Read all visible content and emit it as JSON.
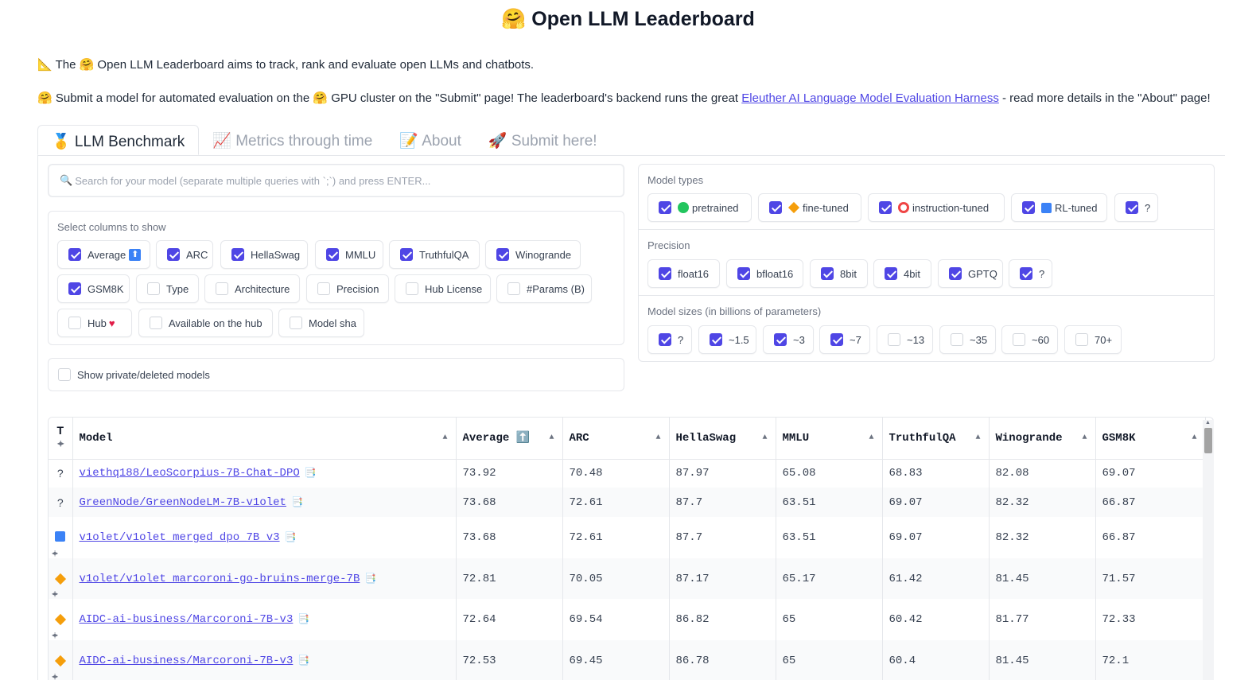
{
  "title": "🤗 Open LLM Leaderboard",
  "intro": {
    "p1": "📐 The 🤗 Open LLM Leaderboard aims to track, rank and evaluate open LLMs and chatbots.",
    "p2_before": "🤗 Submit a model for automated evaluation on the 🤗 GPU cluster on the \"Submit\" page! The leaderboard's backend runs the great ",
    "p2_link": "Eleuther AI Language Model Evaluation Harness",
    "p2_after": " - read more details in the \"About\" page!"
  },
  "tabs": [
    "🥇 LLM Benchmark",
    "📈 Metrics through time",
    "📝 About",
    "🚀 Submit here!"
  ],
  "search": {
    "icon": "🔍",
    "placeholder": "Search for your model (separate multiple queries with `;`) and press ENTER..."
  },
  "columns": {
    "label": "Select columns to show",
    "options": [
      {
        "label": "Average",
        "checked": true
      },
      {
        "label": "ARC",
        "checked": true
      },
      {
        "label": "HellaSwag",
        "checked": true
      },
      {
        "label": "MMLU",
        "checked": true
      },
      {
        "label": "TruthfulQA",
        "checked": true
      },
      {
        "label": "Winogrande",
        "checked": true
      },
      {
        "label": "GSM8K",
        "checked": true
      },
      {
        "label": "Type",
        "checked": false
      },
      {
        "label": "Architecture",
        "checked": false
      },
      {
        "label": "Precision",
        "checked": false
      },
      {
        "label": "Hub License",
        "checked": false
      },
      {
        "label": "#Params (B)",
        "checked": false
      },
      {
        "label": "Hub",
        "checked": false
      },
      {
        "label": "Available on the hub",
        "checked": false
      },
      {
        "label": "Model sha",
        "checked": false
      }
    ]
  },
  "private": {
    "label": "Show private/deleted models",
    "checked": false
  },
  "model_types": {
    "label": "Model types",
    "options": [
      {
        "label": "pretrained",
        "checked": true
      },
      {
        "label": "fine-tuned",
        "checked": true
      },
      {
        "label": "instruction-tuned",
        "checked": true
      },
      {
        "label": "RL-tuned",
        "checked": true
      },
      {
        "label": "?",
        "checked": true
      }
    ]
  },
  "precision": {
    "label": "Precision",
    "options": [
      {
        "label": "float16",
        "checked": true
      },
      {
        "label": "bfloat16",
        "checked": true
      },
      {
        "label": "8bit",
        "checked": true
      },
      {
        "label": "4bit",
        "checked": true
      },
      {
        "label": "GPTQ",
        "checked": true
      },
      {
        "label": "?",
        "checked": true
      }
    ]
  },
  "sizes": {
    "label": "Model sizes (in billions of parameters)",
    "options": [
      {
        "label": "?",
        "checked": true
      },
      {
        "label": "~1.5",
        "checked": true
      },
      {
        "label": "~3",
        "checked": true
      },
      {
        "label": "~7",
        "checked": true
      },
      {
        "label": "~13",
        "checked": false
      },
      {
        "label": "~35",
        "checked": false
      },
      {
        "label": "~60",
        "checked": false
      },
      {
        "label": "70+",
        "checked": false
      }
    ]
  },
  "table": {
    "headers": [
      "T",
      "Model",
      "Average ⬆️",
      "ARC",
      "HellaSwag",
      "MMLU",
      "TruthfulQA",
      "Winogrande",
      "GSM8K"
    ],
    "rows": [
      {
        "type": "?",
        "model": "viethq188/LeoScorpius-7B-Chat-DPO",
        "values": [
          "73.92",
          "70.48",
          "87.97",
          "65.08",
          "68.83",
          "82.08",
          "69.07"
        ]
      },
      {
        "type": "?",
        "model": "GreenNode/GreenNodeLM-7B-v1olet",
        "values": [
          "73.68",
          "72.61",
          "87.7",
          "63.51",
          "69.07",
          "82.32",
          "66.87"
        ]
      },
      {
        "type": "RL-tuned",
        "model": "v1olet/v1olet_merged_dpo_7B_v3",
        "values": [
          "73.68",
          "72.61",
          "87.7",
          "63.51",
          "69.07",
          "82.32",
          "66.87"
        ]
      },
      {
        "type": "fine-tuned",
        "model": "v1olet/v1olet_marcoroni-go-bruins-merge-7B",
        "values": [
          "72.81",
          "70.05",
          "87.17",
          "65.17",
          "61.42",
          "81.45",
          "71.57"
        ]
      },
      {
        "type": "fine-tuned",
        "model": "AIDC-ai-business/Marcoroni-7B-v3",
        "values": [
          "72.64",
          "69.54",
          "86.82",
          "65",
          "60.42",
          "81.77",
          "72.33"
        ]
      },
      {
        "type": "fine-tuned",
        "model": "AIDC-ai-business/Marcoroni-7B-v3",
        "values": [
          "72.53",
          "69.45",
          "86.78",
          "65",
          "60.4",
          "81.45",
          "72.1"
        ]
      }
    ]
  },
  "colors": {
    "accent": "#4f46e5",
    "rl": "#3b82f6",
    "fine_tuned": "#f59e0b",
    "pretrained": "#22c55e",
    "instruction": "#ef4444"
  }
}
